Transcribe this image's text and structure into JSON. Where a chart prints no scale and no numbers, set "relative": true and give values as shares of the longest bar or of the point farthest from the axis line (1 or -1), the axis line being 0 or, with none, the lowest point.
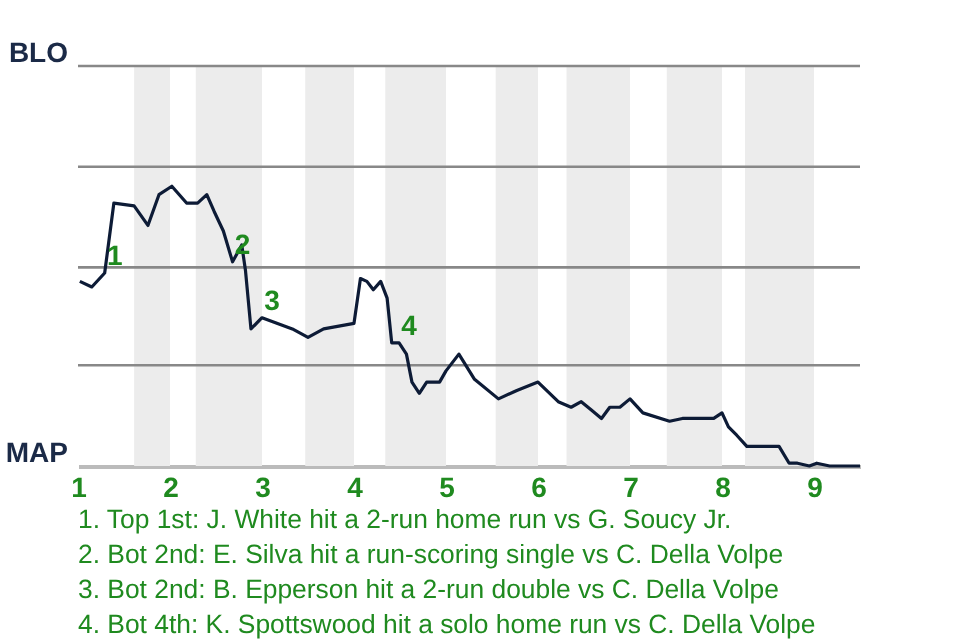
{
  "chart_data": {
    "type": "line",
    "relative": true,
    "x": [
      1.02,
      1.15,
      1.29,
      1.39,
      1.61,
      1.76,
      1.88,
      2.02,
      2.18,
      2.3,
      2.4,
      2.48,
      2.58,
      2.68,
      2.78,
      2.82,
      2.88,
      3.0,
      3.33,
      3.5,
      3.67,
      4.0,
      4.07,
      4.14,
      4.21,
      4.29,
      4.36,
      4.41,
      4.49,
      4.57,
      4.63,
      4.71,
      4.79,
      4.93,
      5.0,
      5.14,
      5.31,
      5.57,
      5.77,
      6.0,
      6.22,
      6.36,
      6.47,
      6.58,
      6.69,
      6.78,
      6.89,
      7.0,
      7.14,
      7.43,
      7.57,
      7.77,
      7.91,
      8.0,
      8.07,
      8.16,
      8.27,
      8.36,
      8.53,
      8.62,
      8.73,
      8.82,
      8.95,
      9.03,
      9.17,
      9.5
    ],
    "series": [
      {
        "color": "#0d1b36",
        "values": [
          0.66,
          0.64,
          0.69,
          0.94,
          0.93,
          0.86,
          0.97,
          1,
          0.94,
          0.94,
          0.97,
          0.91,
          0.84,
          0.73,
          0.79,
          0.7,
          0.49,
          0.53,
          0.49,
          0.46,
          0.49,
          0.51,
          0.67,
          0.66,
          0.63,
          0.66,
          0.6,
          0.44,
          0.44,
          0.4,
          0.3,
          0.26,
          0.3,
          0.3,
          0.34,
          0.4,
          0.31,
          0.24,
          0.27,
          0.3,
          0.23,
          0.21,
          0.23,
          0.2,
          0.17,
          0.21,
          0.21,
          0.24,
          0.19,
          0.16,
          0.17,
          0.17,
          0.17,
          0.19,
          0.14,
          0.11,
          0.07,
          0.07,
          0.07,
          0.07,
          0.01,
          0.01,
          0,
          0.01,
          0,
          0
        ]
      }
    ],
    "xlim": [
      1,
      9.5
    ],
    "xticks": [
      1,
      2,
      3,
      4,
      5,
      6,
      7,
      8,
      9
    ],
    "ref_lines": [
      {
        "axis": "y",
        "value": 0.36,
        "color": "#888888"
      },
      {
        "axis": "y",
        "value": 0.71,
        "color": "#888888"
      },
      {
        "axis": "y",
        "value": 1.07,
        "color": "#888888"
      },
      {
        "axis": "y",
        "value": 1.43,
        "color": "#888888",
        "label": "BLO"
      }
    ],
    "bands": [
      {
        "axis": "x",
        "from": 1.61,
        "to": 2,
        "color": "#ececec"
      },
      {
        "axis": "x",
        "from": 2.28,
        "to": 3,
        "color": "#ececec"
      },
      {
        "axis": "x",
        "from": 3.47,
        "to": 4,
        "color": "#ececec"
      },
      {
        "axis": "x",
        "from": 4.34,
        "to": 5,
        "color": "#ececec"
      },
      {
        "axis": "x",
        "from": 5.54,
        "to": 6,
        "color": "#ececec"
      },
      {
        "axis": "x",
        "from": 6.31,
        "to": 7,
        "color": "#ececec"
      },
      {
        "axis": "x",
        "from": 7.4,
        "to": 8,
        "color": "#ececec"
      },
      {
        "axis": "x",
        "from": 8.25,
        "to": 9,
        "color": "#ececec"
      }
    ],
    "annotations": [
      "MAP",
      {
        "text": "1",
        "x": 1.29,
        "y": 0.69
      },
      {
        "text": "2",
        "x": 2.68,
        "y": 0.73
      },
      {
        "text": "3",
        "x": 3.0,
        "y": 0.53
      },
      {
        "text": "4",
        "x": 4.49,
        "y": 0.44
      },
      "1. Top 1st: J. White hit a 2-run home run vs G. Soucy Jr.",
      "2. Bot 2nd: E. Silva hit a run-scoring single vs C. Della Volpe",
      "3. Bot 2nd: B. Epperson hit a 2-run double vs C. Della Volpe",
      "4. Bot 4th: K. Spottswood hit a solo home run vs C. Della Volpe"
    ]
  }
}
